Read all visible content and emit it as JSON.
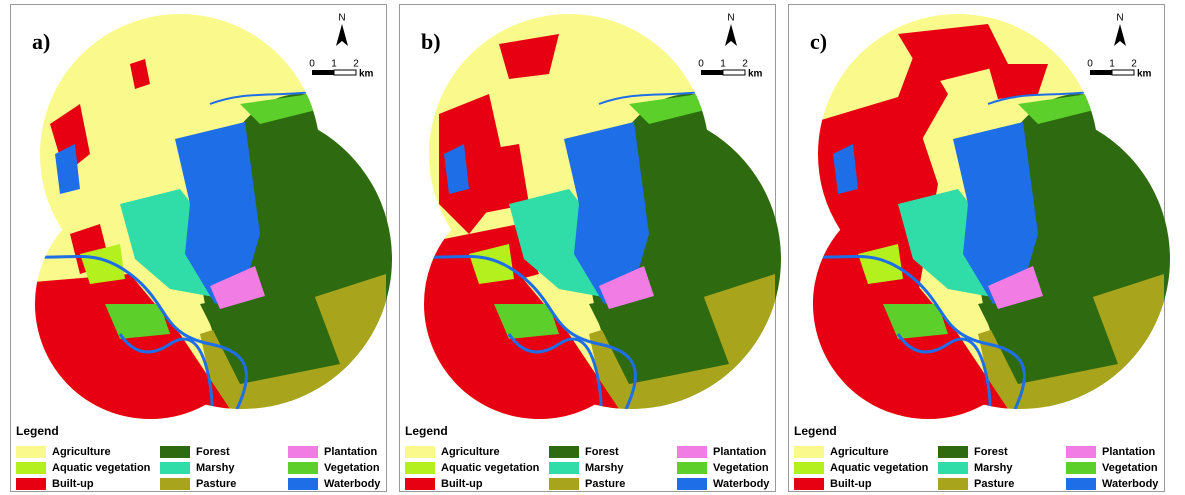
{
  "panels": [
    {
      "label": "a)"
    },
    {
      "label": "b)"
    },
    {
      "label": "c)"
    }
  ],
  "north": "N",
  "scale": {
    "ticks": [
      "0",
      "1",
      "2"
    ],
    "unit": "km"
  },
  "legend": {
    "title": "Legend",
    "items": [
      {
        "label": "Agriculture",
        "color": "#fafa8c"
      },
      {
        "label": "Aquatic vegetation",
        "color": "#b4f01e"
      },
      {
        "label": "Built-up",
        "color": "#e60012"
      },
      {
        "label": "Forest",
        "color": "#2d6a10"
      },
      {
        "label": "Marshy",
        "color": "#30dca8"
      },
      {
        "label": "Pasture",
        "color": "#a8a41c"
      },
      {
        "label": "Plantation",
        "color": "#f07ce4"
      },
      {
        "label": "Vegetation",
        "color": "#5ccf2a"
      },
      {
        "label": "Waterbody",
        "color": "#1e6ee8"
      }
    ]
  }
}
